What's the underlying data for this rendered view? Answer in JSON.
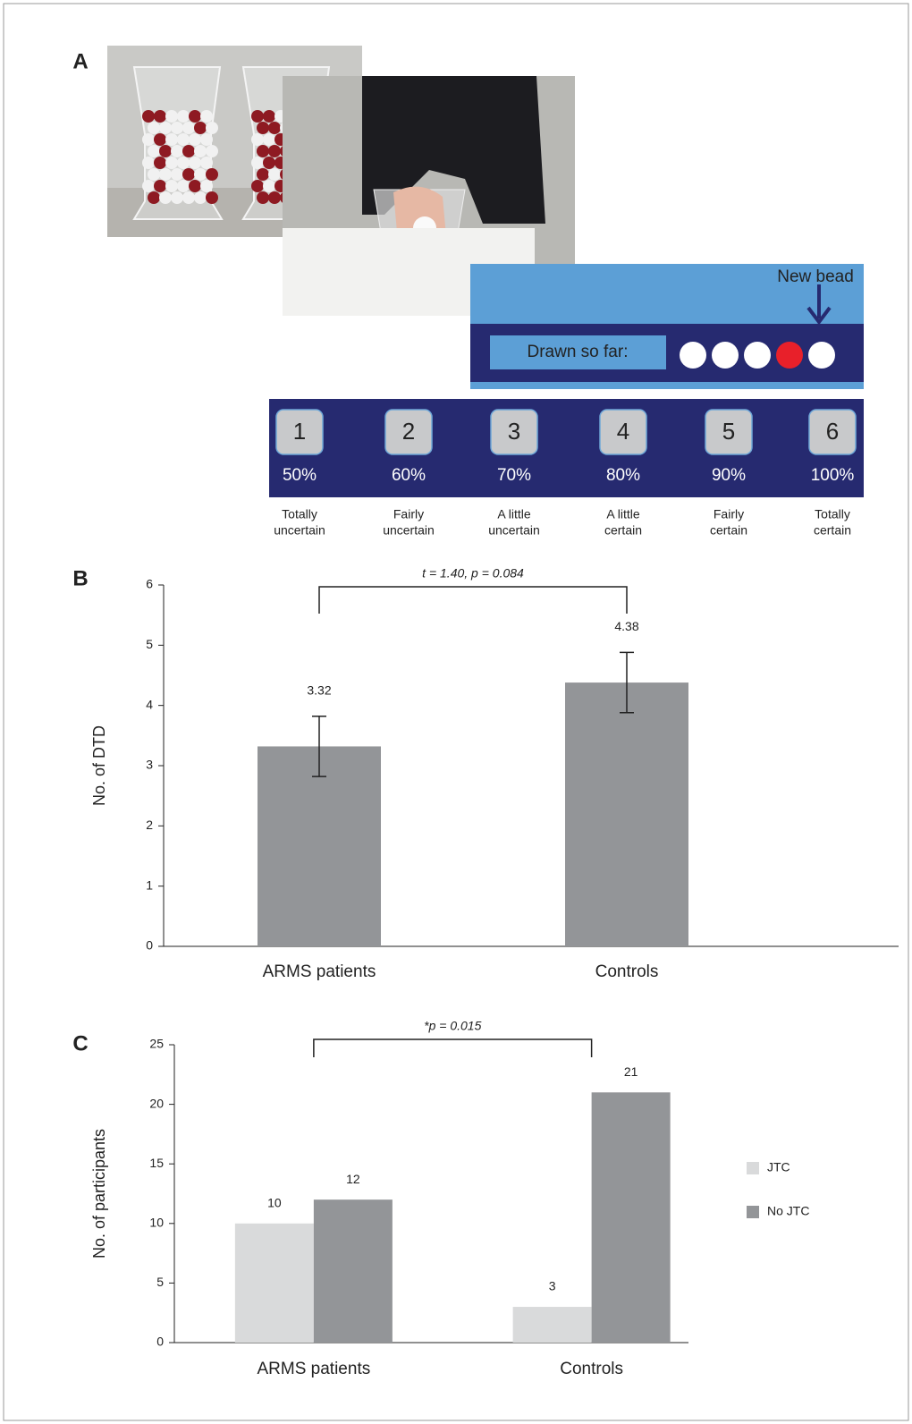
{
  "panel_a": {
    "label": "A",
    "new_bead": "New bead",
    "drawn_so_far": "Drawn so far:",
    "bead_colors": [
      "#ffffff",
      "#ffffff",
      "#ffffff",
      "#e8202a",
      "#ffffff"
    ],
    "buttons": [
      "1",
      "2",
      "3",
      "4",
      "5",
      "6"
    ],
    "percentages": [
      "50%",
      "60%",
      "70%",
      "80%",
      "90%",
      "100%"
    ],
    "descriptions": [
      [
        "Totally",
        "uncertain"
      ],
      [
        "Fairly",
        "uncertain"
      ],
      [
        "A little",
        "uncertain"
      ],
      [
        "A little",
        "certain"
      ],
      [
        "Fairly",
        "certain"
      ],
      [
        "Totally",
        "certain"
      ]
    ]
  },
  "chart_data": [
    {
      "type": "bar",
      "panel_label": "B",
      "ylabel": "No. of DTD",
      "annotation": "t = 1.40, p = 0.084",
      "categories": [
        "ARMS patients",
        "Controls"
      ],
      "values": [
        3.32,
        4.38
      ],
      "errors": [
        0.5,
        0.5
      ],
      "color": "#939598",
      "ylim": [
        0,
        6
      ],
      "yticks": [
        0,
        1,
        2,
        3,
        4,
        5,
        6
      ]
    },
    {
      "type": "grouped-bar",
      "panel_label": "C",
      "ylabel": "No. of participants",
      "annotation": "*p = 0.015",
      "categories": [
        "ARMS patients",
        "Controls"
      ],
      "series": [
        {
          "name": "JTC",
          "color": "#d9dadb",
          "values": [
            10,
            3
          ]
        },
        {
          "name": "No JTC",
          "color": "#939598",
          "values": [
            12,
            21
          ]
        }
      ],
      "ylim": [
        0,
        25
      ],
      "yticks": [
        0,
        5,
        10,
        15,
        20,
        25
      ],
      "legend": "right"
    }
  ]
}
